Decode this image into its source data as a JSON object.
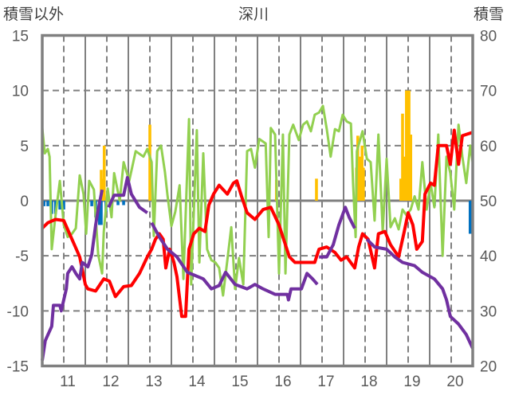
{
  "chart_data": {
    "type": "line",
    "title": "深川",
    "ylabel_left": "積雪以外",
    "ylabel_right": "積雪",
    "xlim": [
      10.5,
      20.5
    ],
    "ylim_left": [
      -15,
      15
    ],
    "ylim_right": [
      20,
      80
    ],
    "x_ticks": [
      11,
      12,
      13,
      14,
      15,
      16,
      17,
      18,
      19,
      20
    ],
    "x_tick_labels": [
      "11",
      "12",
      "13",
      "14",
      "15",
      "16",
      "17",
      "18",
      "19",
      "20"
    ],
    "y_left_ticks": [
      "15",
      "10",
      "5",
      "0",
      "-5",
      "-10",
      "-15"
    ],
    "y_left_values": [
      15,
      10,
      5,
      0,
      -5,
      -10,
      -15
    ],
    "y_right_ticks": [
      "80",
      "70",
      "60",
      "50",
      "40",
      "30",
      "20"
    ],
    "y_right_values": [
      80,
      70,
      60,
      50,
      40,
      30,
      20
    ],
    "grid": true,
    "colors": {
      "red": "#FF0000",
      "green": "#92D050",
      "purple": "#7030A0",
      "orange": "#FFC000",
      "blue": "#0070C0",
      "frame": "#808080"
    },
    "series": [
      {
        "name": "red",
        "axis": "left",
        "color": "#FF0000",
        "points": [
          [
            10.5,
            -2.5
          ],
          [
            10.63,
            -2
          ],
          [
            10.81,
            -1.7
          ],
          [
            11.0,
            -1.8
          ],
          [
            11.19,
            -3.5
          ],
          [
            11.37,
            -5.1
          ],
          [
            11.5,
            -7.6
          ],
          [
            11.56,
            -8
          ],
          [
            11.74,
            -8.2
          ],
          [
            11.93,
            -7.1
          ],
          [
            12.06,
            -7.3
          ],
          [
            12.2,
            -8.7
          ],
          [
            12.39,
            -7.8
          ],
          [
            12.57,
            -7.7
          ],
          [
            12.76,
            -6.6
          ],
          [
            12.94,
            -5.1
          ],
          [
            13.04,
            -4.4
          ],
          [
            13.13,
            -3.5
          ],
          [
            13.22,
            -3.0
          ],
          [
            13.31,
            -3.5
          ],
          [
            13.37,
            -6.1
          ],
          [
            13.46,
            -4.4
          ],
          [
            13.56,
            -5.6
          ],
          [
            13.63,
            -6.9
          ],
          [
            13.74,
            -10.5
          ],
          [
            13.83,
            -10.5
          ],
          [
            13.91,
            -4.4
          ],
          [
            14.02,
            -3
          ],
          [
            14.15,
            -2.5
          ],
          [
            14.28,
            -2.8
          ],
          [
            14.37,
            -0.4
          ],
          [
            14.48,
            0.6
          ],
          [
            14.61,
            1.4
          ],
          [
            14.8,
            0.6
          ],
          [
            14.94,
            1.6
          ],
          [
            15.02,
            1.8
          ],
          [
            15.13,
            0.4
          ],
          [
            15.26,
            -1.1
          ],
          [
            15.44,
            -1.7
          ],
          [
            15.63,
            -0.8
          ],
          [
            15.81,
            -0.6
          ],
          [
            16.0,
            -2.2
          ],
          [
            16.09,
            -3.3
          ],
          [
            16.24,
            -5.1
          ],
          [
            16.37,
            -5.6
          ],
          [
            16.65,
            -5.6
          ],
          [
            16.83,
            -5.6
          ],
          [
            16.93,
            -4.4
          ],
          [
            17.11,
            -4.2
          ],
          [
            17.3,
            -4.7
          ],
          [
            17.44,
            -5.4
          ],
          [
            17.57,
            -5.1
          ],
          [
            17.76,
            -6.1
          ],
          [
            17.85,
            -4.2
          ],
          [
            17.94,
            -3
          ],
          [
            18.07,
            -3.5
          ],
          [
            18.22,
            -6.1
          ],
          [
            18.31,
            -3
          ],
          [
            18.46,
            -2.8
          ],
          [
            18.59,
            -4
          ],
          [
            18.78,
            -5.1
          ],
          [
            18.91,
            -2.8
          ],
          [
            19.0,
            -1.1
          ],
          [
            19.11,
            -2.2
          ],
          [
            19.2,
            -4.4
          ],
          [
            19.33,
            -3.7
          ],
          [
            19.39,
            0.6
          ],
          [
            19.52,
            1.6
          ],
          [
            19.61,
            1.4
          ],
          [
            19.7,
            5
          ],
          [
            19.89,
            5
          ],
          [
            19.98,
            3.3
          ],
          [
            20.07,
            6.4
          ],
          [
            20.17,
            3.3
          ],
          [
            20.26,
            5.9
          ],
          [
            20.5,
            6.2
          ]
        ]
      },
      {
        "name": "green",
        "axis": "left",
        "color": "#92D050",
        "points": [
          [
            10.5,
            6.6
          ],
          [
            10.56,
            4.3
          ],
          [
            10.63,
            4.7
          ],
          [
            10.67,
            4
          ],
          [
            10.72,
            -4.4
          ],
          [
            10.81,
            -1.3
          ],
          [
            10.91,
            1.8
          ],
          [
            11.0,
            -2.2
          ],
          [
            11.09,
            -3.3
          ],
          [
            11.19,
            -3
          ],
          [
            11.28,
            -2.5
          ],
          [
            11.37,
            2.3
          ],
          [
            11.46,
            0.6
          ],
          [
            11.52,
            -3
          ],
          [
            11.59,
            1.8
          ],
          [
            11.7,
            1
          ],
          [
            11.8,
            -4.9
          ],
          [
            11.89,
            -6.6
          ],
          [
            11.93,
            -2.8
          ],
          [
            12.02,
            1.1
          ],
          [
            12.11,
            -1.5
          ],
          [
            12.17,
            2.5
          ],
          [
            12.3,
            0
          ],
          [
            12.39,
            3.5
          ],
          [
            12.52,
            1.8
          ],
          [
            12.67,
            4.5
          ],
          [
            12.85,
            4
          ],
          [
            12.94,
            4.7
          ],
          [
            13.04,
            3.5
          ],
          [
            13.09,
            -3.2
          ],
          [
            13.17,
            4.5
          ],
          [
            13.26,
            5
          ],
          [
            13.35,
            2.6
          ],
          [
            13.41,
            0.5
          ],
          [
            13.5,
            -2.3
          ],
          [
            13.59,
            -1
          ],
          [
            13.69,
            1.4
          ],
          [
            13.78,
            -7.1
          ],
          [
            13.91,
            7.4
          ],
          [
            13.96,
            -7.6
          ],
          [
            14.09,
            6.4
          ],
          [
            14.15,
            -5.6
          ],
          [
            14.24,
            4.3
          ],
          [
            14.33,
            -4.4
          ],
          [
            14.43,
            -5.4
          ],
          [
            14.52,
            -5.6
          ],
          [
            14.61,
            -6.1
          ],
          [
            14.7,
            -8.6
          ],
          [
            14.8,
            -5.4
          ],
          [
            14.89,
            -2.4
          ],
          [
            14.98,
            -8
          ],
          [
            15.07,
            -5.2
          ],
          [
            15.17,
            -7.6
          ],
          [
            15.26,
            4.5
          ],
          [
            15.35,
            4.7
          ],
          [
            15.44,
            3
          ],
          [
            15.54,
            5.6
          ],
          [
            15.69,
            5.2
          ],
          [
            15.76,
            -3.3
          ],
          [
            15.81,
            6.6
          ],
          [
            15.91,
            6
          ],
          [
            16.0,
            -6.6
          ],
          [
            16.09,
            6
          ],
          [
            16.15,
            -6.6
          ],
          [
            16.24,
            6
          ],
          [
            16.33,
            6.9
          ],
          [
            16.46,
            5.5
          ],
          [
            16.56,
            6.9
          ],
          [
            16.65,
            7.2
          ],
          [
            16.74,
            6.3
          ],
          [
            16.83,
            7.8
          ],
          [
            16.93,
            8
          ],
          [
            17.02,
            8.6
          ],
          [
            17.11,
            6.5
          ],
          [
            17.2,
            4
          ],
          [
            17.3,
            6.5
          ],
          [
            17.39,
            6.3
          ],
          [
            17.48,
            7.8
          ],
          [
            17.57,
            7.2
          ],
          [
            17.67,
            7
          ],
          [
            17.72,
            1.6
          ],
          [
            17.78,
            -3.3
          ],
          [
            17.81,
            4.5
          ],
          [
            17.94,
            6.3
          ],
          [
            18.04,
            3.8
          ],
          [
            18.13,
            3.5
          ],
          [
            18.22,
            -1.8
          ],
          [
            18.31,
            6
          ],
          [
            18.41,
            -2.8
          ],
          [
            18.5,
            3.8
          ],
          [
            18.59,
            -2.4
          ],
          [
            18.69,
            -1.6
          ],
          [
            18.78,
            -2.6
          ],
          [
            18.87,
            -0.8
          ],
          [
            18.96,
            -1.3
          ],
          [
            19.06,
            -0.8
          ],
          [
            19.15,
            0.4
          ],
          [
            19.24,
            -0.8
          ],
          [
            19.33,
            3.5
          ],
          [
            19.43,
            -0.8
          ],
          [
            19.52,
            1.6
          ],
          [
            19.61,
            -0.6
          ],
          [
            19.7,
            6
          ],
          [
            19.8,
            -5
          ],
          [
            19.89,
            4
          ],
          [
            19.98,
            2.5
          ],
          [
            20.07,
            -0.8
          ],
          [
            20.17,
            6.9
          ],
          [
            20.26,
            4
          ],
          [
            20.35,
            1.6
          ],
          [
            20.44,
            5
          ],
          [
            20.5,
            3.5
          ]
        ]
      },
      {
        "name": "purple",
        "axis": "right",
        "color": "#7030A0",
        "points": [
          [
            10.5,
            21
          ],
          [
            10.57,
            24.6
          ],
          [
            10.72,
            27.2
          ],
          [
            10.76,
            31
          ],
          [
            10.91,
            31
          ],
          [
            10.94,
            30
          ],
          [
            11.06,
            34
          ],
          [
            11.09,
            36.8
          ],
          [
            11.19,
            38
          ],
          [
            11.28,
            36.8
          ],
          [
            11.37,
            35.8
          ],
          [
            11.43,
            38.8
          ],
          [
            11.56,
            38
          ],
          [
            11.65,
            40.2
          ],
          [
            11.74,
            45.6
          ],
          [
            11.8,
            48.4
          ],
          [
            11.89,
            52
          ],
          null,
          [
            12.04,
            48.8
          ],
          [
            12.17,
            51
          ],
          [
            12.39,
            51
          ],
          [
            12.48,
            54.2
          ],
          [
            12.57,
            51.2
          ],
          [
            12.76,
            48.8
          ],
          [
            12.94,
            47.8
          ],
          null,
          [
            13.04,
            46
          ],
          [
            13.22,
            43.4
          ],
          [
            13.41,
            41.2
          ],
          [
            13.63,
            39.8
          ],
          [
            13.87,
            37
          ],
          [
            14.24,
            35.8
          ],
          [
            14.43,
            34
          ],
          [
            14.61,
            34.6
          ],
          [
            14.76,
            37
          ],
          [
            14.98,
            34.8
          ],
          [
            15.26,
            34
          ],
          [
            15.44,
            34.8
          ],
          [
            15.63,
            34
          ],
          [
            15.91,
            33
          ],
          [
            16.19,
            33
          ],
          [
            16.22,
            32
          ],
          [
            16.28,
            34
          ],
          [
            16.52,
            34
          ],
          [
            16.65,
            36.8
          ],
          [
            16.78,
            35.8
          ],
          [
            16.89,
            34.8
          ],
          null,
          [
            16.93,
            39.8
          ],
          [
            17.11,
            39.8
          ],
          [
            17.26,
            42
          ],
          [
            17.39,
            45.6
          ],
          [
            17.54,
            48.8
          ],
          [
            17.63,
            47
          ],
          [
            17.76,
            45
          ],
          null,
          [
            18.04,
            43
          ],
          [
            18.22,
            41.6
          ],
          [
            18.5,
            41.2
          ],
          [
            18.69,
            39.8
          ],
          [
            18.87,
            38.8
          ],
          [
            19.15,
            38.2
          ],
          [
            19.33,
            37
          ],
          [
            19.61,
            35.8
          ],
          [
            19.8,
            34
          ],
          [
            19.89,
            32
          ],
          [
            19.98,
            29
          ],
          [
            20.17,
            27.6
          ],
          [
            20.35,
            25.7
          ],
          [
            20.5,
            23.2
          ]
        ]
      }
    ],
    "bars": [
      {
        "name": "orange",
        "axis": "left",
        "color": "#FFC000",
        "points": [
          [
            11.87,
            2.8
          ],
          [
            11.91,
            2
          ],
          [
            11.94,
            5
          ],
          [
            13.0,
            6.9
          ],
          [
            15.94,
            1.9
          ],
          [
            16.87,
            2
          ],
          [
            17.8,
            3
          ],
          [
            17.83,
            5.9
          ],
          [
            17.87,
            4
          ],
          [
            17.93,
            5
          ],
          [
            17.96,
            3
          ],
          [
            18.83,
            2
          ],
          [
            18.87,
            7.9
          ],
          [
            18.91,
            4
          ],
          [
            18.96,
            10
          ],
          [
            19.02,
            10
          ],
          [
            19.06,
            6
          ]
        ]
      },
      {
        "name": "blue",
        "axis": "left",
        "color": "#0070C0",
        "points": [
          [
            10.54,
            -0.5
          ],
          [
            10.63,
            -0.5
          ],
          [
            10.72,
            -1.2
          ],
          [
            10.81,
            -1.2
          ],
          [
            10.91,
            -0.8
          ],
          [
            11.0,
            -0.8
          ],
          [
            11.65,
            -0.5
          ],
          [
            11.74,
            -1.5
          ],
          [
            11.83,
            -2.2
          ],
          [
            11.87,
            -2.2
          ],
          [
            11.98,
            -1
          ],
          [
            12.26,
            -0.4
          ],
          [
            12.39,
            -0.4
          ],
          [
            19.61,
            -0.5
          ],
          [
            20.44,
            -3
          ]
        ]
      }
    ]
  }
}
